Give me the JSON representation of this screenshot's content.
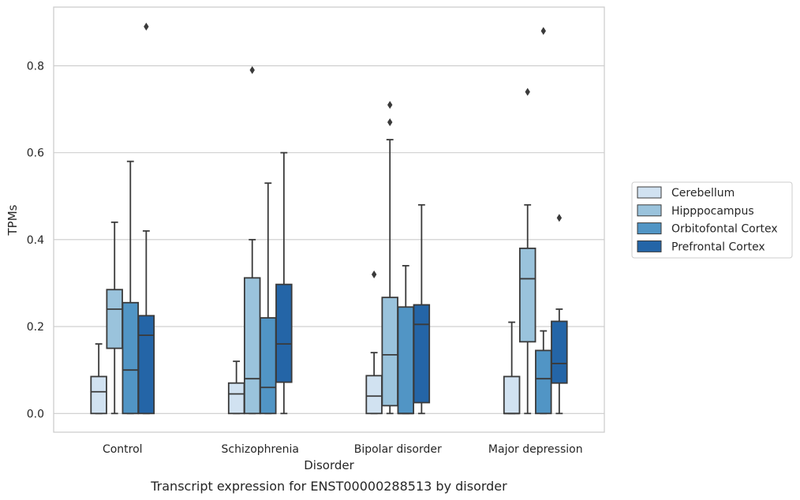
{
  "caption": "Transcript expression for ENST00000288513 by disorder",
  "chart_data": {
    "type": "box",
    "xlabel": "Disorder",
    "ylabel": "TPMs",
    "ylim": [
      -0.043,
      0.935
    ],
    "yticks": [
      0.0,
      0.2,
      0.4,
      0.6,
      0.8
    ],
    "ytick_labels": [
      "0.0",
      "0.2",
      "0.4",
      "0.6",
      "0.8"
    ],
    "grid": "horizontal",
    "legend_position": "right",
    "categories": [
      "Control",
      "Schizophrenia",
      "Bipolar disorder",
      "Major depression"
    ],
    "series": [
      {
        "name": "Cerebellum",
        "color": "#d1e2f1",
        "boxes": [
          {
            "whislo": 0.0,
            "q1": 0.0,
            "med": 0.05,
            "q3": 0.085,
            "whishi": 0.16,
            "fliers": []
          },
          {
            "whislo": 0.0,
            "q1": 0.0,
            "med": 0.045,
            "q3": 0.07,
            "whishi": 0.12,
            "fliers": []
          },
          {
            "whislo": 0.0,
            "q1": 0.0,
            "med": 0.04,
            "q3": 0.087,
            "whishi": 0.14,
            "fliers": [
              0.32
            ]
          },
          {
            "whislo": 0.0,
            "q1": 0.0,
            "med": 0.0,
            "q3": 0.085,
            "whishi": 0.21,
            "fliers": []
          }
        ]
      },
      {
        "name": "Hipppocampus",
        "color": "#9ac3dc",
        "boxes": [
          {
            "whislo": 0.0,
            "q1": 0.15,
            "med": 0.24,
            "q3": 0.285,
            "whishi": 0.44,
            "fliers": []
          },
          {
            "whislo": 0.0,
            "q1": 0.0,
            "med": 0.08,
            "q3": 0.312,
            "whishi": 0.4,
            "fliers": [
              0.79
            ]
          },
          {
            "whislo": 0.0,
            "q1": 0.018,
            "med": 0.135,
            "q3": 0.267,
            "whishi": 0.63,
            "fliers": [
              0.67,
              0.71
            ]
          },
          {
            "whislo": 0.0,
            "q1": 0.165,
            "med": 0.31,
            "q3": 0.38,
            "whishi": 0.48,
            "fliers": [
              0.74
            ]
          }
        ]
      },
      {
        "name": "Orbitofontal Cortex",
        "color": "#5195c5",
        "boxes": [
          {
            "whislo": 0.0,
            "q1": 0.0,
            "med": 0.1,
            "q3": 0.255,
            "whishi": 0.58,
            "fliers": []
          },
          {
            "whislo": 0.0,
            "q1": 0.0,
            "med": 0.06,
            "q3": 0.22,
            "whishi": 0.53,
            "fliers": []
          },
          {
            "whislo": 0.0,
            "q1": 0.0,
            "med": 0.0,
            "q3": 0.245,
            "whishi": 0.34,
            "fliers": []
          },
          {
            "whislo": 0.0,
            "q1": 0.0,
            "med": 0.08,
            "q3": 0.145,
            "whishi": 0.19,
            "fliers": [
              0.88
            ]
          }
        ]
      },
      {
        "name": "Prefrontal Cortex",
        "color": "#2465a7",
        "boxes": [
          {
            "whislo": 0.0,
            "q1": 0.0,
            "med": 0.18,
            "q3": 0.225,
            "whishi": 0.42,
            "fliers": [
              0.89
            ]
          },
          {
            "whislo": 0.0,
            "q1": 0.072,
            "med": 0.16,
            "q3": 0.297,
            "whishi": 0.6,
            "fliers": []
          },
          {
            "whislo": 0.0,
            "q1": 0.025,
            "med": 0.205,
            "q3": 0.25,
            "whishi": 0.48,
            "fliers": []
          },
          {
            "whislo": 0.0,
            "q1": 0.07,
            "med": 0.115,
            "q3": 0.212,
            "whishi": 0.24,
            "fliers": [
              0.45
            ]
          }
        ]
      }
    ]
  }
}
